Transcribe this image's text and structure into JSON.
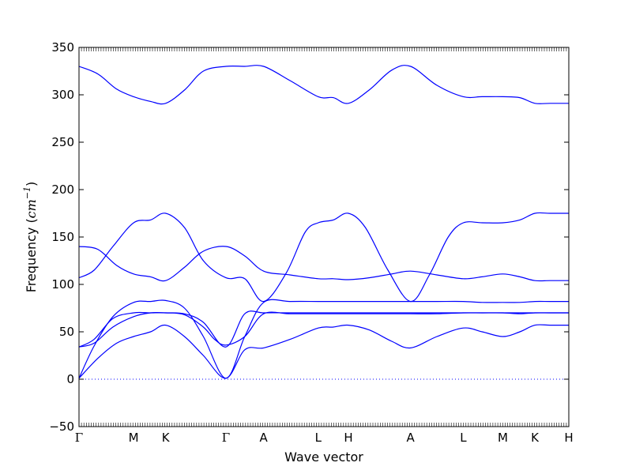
{
  "chart_data": {
    "type": "line",
    "xlabel": "Wave vector",
    "ylabel": "Frequency (",
    "ylabel_unit_base": "cm",
    "ylabel_unit_exp": "−1",
    "ylabel_close": ")",
    "ylim": [
      -50,
      350
    ],
    "yticks": [
      -50,
      0,
      50,
      100,
      150,
      200,
      250,
      300,
      350
    ],
    "ytick_labels": [
      "−50",
      "0",
      "50",
      "100",
      "150",
      "200",
      "250",
      "300",
      "350"
    ],
    "xlim": [
      0,
      13
    ],
    "xticks": [
      0,
      1.45,
      2.3,
      3.9,
      4.9,
      6.35,
      7.15,
      8.8,
      10.2,
      11.25,
      12.1,
      13
    ],
    "xtick_labels": [
      "Γ",
      "M",
      "K",
      "Γ",
      "A",
      "L",
      "H",
      "A",
      "L",
      "M",
      "K",
      "H"
    ],
    "grid": false,
    "zero_line": {
      "y": 0,
      "style": "dotted"
    },
    "series_color": "#0000ff",
    "series": [
      {
        "x": [
          0,
          0.5,
          1.0,
          1.45,
          1.9,
          2.3,
          2.8,
          3.3,
          3.9,
          4.4,
          4.9,
          5.6,
          6.35,
          6.75,
          7.15,
          7.7,
          8.3,
          8.8,
          9.5,
          10.2,
          10.7,
          11.25,
          11.7,
          12.1,
          12.5,
          13
        ],
        "y": [
          330,
          322,
          306,
          298,
          293,
          291,
          305,
          325,
          330,
          330,
          330,
          315,
          298,
          297,
          291,
          305,
          326,
          330,
          310,
          298,
          298,
          298,
          297,
          291,
          291,
          291
        ]
      },
      {
        "x": [
          0,
          0.4,
          0.9,
          1.45,
          1.9,
          2.3,
          2.8,
          3.3,
          3.9,
          4.4,
          4.9,
          5.5,
          6.0,
          6.35,
          6.75,
          7.15,
          7.6,
          8.2,
          8.8,
          9.3,
          9.8,
          10.2,
          10.7,
          11.25,
          11.7,
          12.1,
          12.5,
          13
        ],
        "y": [
          107,
          115,
          140,
          165,
          168,
          175,
          160,
          125,
          107,
          106,
          82,
          112,
          155,
          165,
          168,
          175,
          160,
          115,
          82,
          110,
          150,
          165,
          165,
          165,
          168,
          175,
          175,
          175
        ]
      },
      {
        "x": [
          0,
          0.5,
          1.0,
          1.45,
          1.9,
          2.3,
          2.8,
          3.3,
          3.9,
          4.4,
          4.9,
          5.6,
          6.35,
          6.75,
          7.15,
          7.7,
          8.3,
          8.8,
          9.5,
          10.2,
          10.7,
          11.25,
          11.7,
          12.1,
          12.5,
          13
        ],
        "y": [
          140,
          137,
          120,
          111,
          108,
          104,
          118,
          135,
          140,
          130,
          114,
          110,
          106,
          106,
          105,
          107,
          111,
          114,
          110,
          106,
          108,
          111,
          108,
          104,
          104,
          104
        ]
      },
      {
        "x": [
          0,
          0.4,
          0.9,
          1.45,
          1.9,
          2.3,
          2.8,
          3.3,
          3.9,
          4.4,
          4.9,
          5.6,
          6.35,
          6.75,
          7.15,
          7.7,
          8.3,
          8.8,
          9.5,
          10.2,
          10.7,
          11.25,
          11.7,
          12.1,
          12.5,
          13
        ],
        "y": [
          1,
          35,
          66,
          81,
          82,
          83,
          75,
          45,
          1,
          45,
          81,
          82,
          82,
          82,
          82,
          82,
          82,
          82,
          82,
          82,
          81,
          81,
          81,
          82,
          82,
          82
        ]
      },
      {
        "x": [
          0,
          0.4,
          0.9,
          1.45,
          1.9,
          2.3,
          2.8,
          3.3,
          3.6,
          3.9,
          4.4,
          4.9,
          5.6,
          6.35,
          6.75,
          7.15,
          7.7,
          8.3,
          8.8,
          9.5,
          10.2,
          10.7,
          11.25,
          11.7,
          12.1,
          12.5,
          13
        ],
        "y": [
          34,
          42,
          64,
          70,
          70,
          70,
          68,
          55,
          42,
          36,
          45,
          69,
          69,
          69,
          69,
          69,
          69,
          69,
          69,
          69,
          70,
          70,
          70,
          69,
          70,
          70,
          70
        ]
      },
      {
        "x": [
          0,
          0.5,
          1.0,
          1.45,
          1.9,
          2.3,
          2.8,
          3.3,
          3.9,
          4.4,
          4.9,
          5.6,
          6.35,
          6.75,
          7.15,
          7.7,
          8.3,
          8.8,
          9.5,
          10.2,
          10.7,
          11.25,
          11.7,
          12.1,
          12.5,
          13
        ],
        "y": [
          1,
          22,
          38,
          45,
          50,
          57,
          45,
          25,
          1,
          31,
          33,
          42,
          54,
          55,
          57,
          52,
          40,
          33,
          45,
          54,
          50,
          45,
          50,
          57,
          57,
          57
        ]
      },
      {
        "x": [
          0,
          0.4,
          0.9,
          1.45,
          1.9,
          2.3,
          2.8,
          3.3,
          3.9,
          4.4,
          4.9,
          5.6,
          6.35,
          6.75,
          7.15,
          7.7,
          8.3,
          8.8,
          9.5,
          10.2,
          10.7,
          11.25,
          11.7,
          12.1,
          12.5,
          13
        ],
        "y": [
          34,
          38,
          55,
          66,
          70,
          70,
          69,
          60,
          34,
          69,
          70,
          70,
          70,
          70,
          70,
          70,
          70,
          70,
          70,
          70,
          70,
          70,
          70,
          70,
          70,
          70
        ]
      }
    ]
  }
}
